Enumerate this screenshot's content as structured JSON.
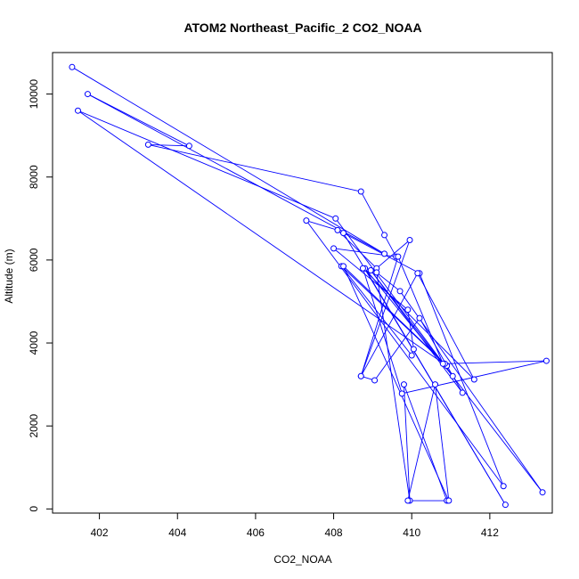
{
  "chart_data": {
    "type": "line",
    "title": "ATOM2 Northeast_Pacific_2 CO2_NOAA",
    "xlabel": "CO2_NOAA",
    "ylabel": "Altitude (m)",
    "xlim": [
      400.8,
      413.6
    ],
    "ylim": [
      -100,
      11000
    ],
    "x_ticks": [
      402,
      404,
      406,
      408,
      410,
      412
    ],
    "y_ticks": [
      0,
      2000,
      4000,
      6000,
      8000,
      10000
    ],
    "grid": false,
    "legend": "none",
    "series_color": "#0000ff",
    "marker": "open-circle",
    "series": [
      {
        "x": [
          401.3,
          409.3,
          401.7,
          404.3,
          403.25,
          408.7,
          409.3,
          409.6,
          408.0,
          409.9,
          410.05,
          410.0,
          408.2,
          410.9,
          401.45,
          408.05,
          411.05,
          408.8,
          412.4,
          408.25,
          410.2,
          412.35,
          407.3,
          408.1,
          409.1,
          409.95,
          408.7,
          409.05,
          410.2,
          411.3,
          408.95,
          413.35,
          409.7,
          409.1,
          409.95,
          409.8,
          410.9,
          409.9,
          410.6,
          410.95,
          408.25,
          410.85,
          413.45,
          409.75,
          408.75,
          411.6,
          410.15,
          408.7,
          409.65,
          410.8
        ]
      }
    ],
    "y": [
      10650,
      6150,
      10000,
      8750,
      8780,
      7650,
      6600,
      6080,
      6280,
      4800,
      3850,
      3700,
      5850,
      3450,
      9600,
      7000,
      3200,
      5800,
      100,
      6650,
      5680,
      550,
      6950,
      6720,
      5800,
      6480,
      3200,
      3100,
      4600,
      2800,
      5750,
      400,
      5250,
      5700,
      200,
      3000,
      200,
      200,
      3000,
      200,
      5850,
      3500,
      3570,
      2780,
      5800,
      3120,
      5680,
      3200,
      6080,
      3500
    ]
  }
}
